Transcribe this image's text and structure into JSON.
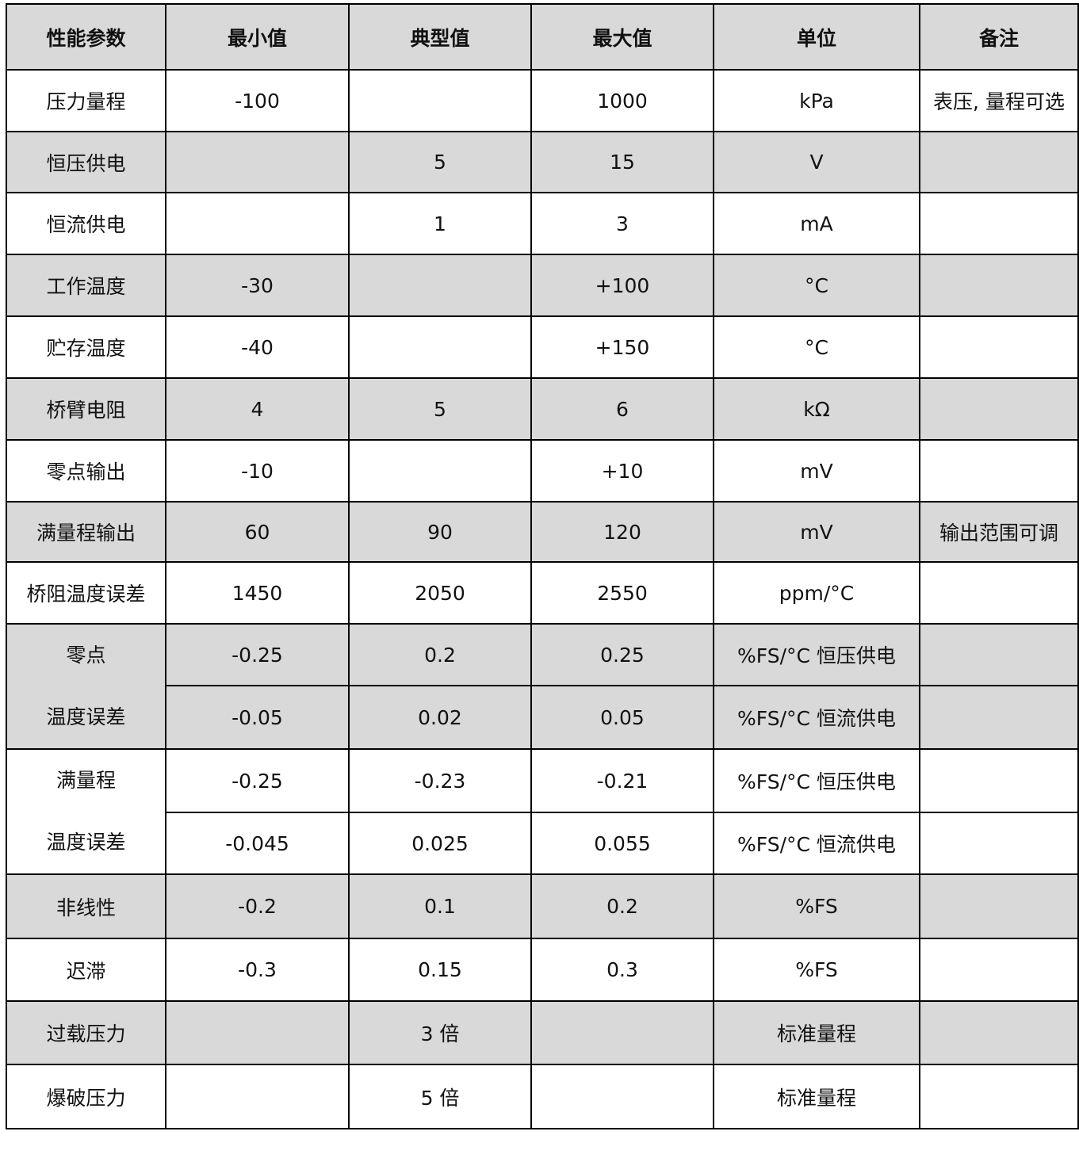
{
  "header": [
    "性能参数",
    "最小值",
    "典型值",
    "最大值",
    "单位",
    "备注"
  ],
  "shade_color": "#d9d9d9",
  "rows": [
    {
      "param": "压力量程",
      "min": "-100",
      "typ": "",
      "max": "1000",
      "unit": "kPa",
      "note": "表压, 量程可选",
      "shaded": false
    },
    {
      "param": "恒压供电",
      "min": "",
      "typ": "5",
      "max": "15",
      "unit": "V",
      "note": "",
      "shaded": true
    },
    {
      "param": "恒流供电",
      "min": "",
      "typ": "1",
      "max": "3",
      "unit": "mA",
      "note": "",
      "shaded": false
    },
    {
      "param": "工作温度",
      "min": "-30",
      "typ": "",
      "max": "+100",
      "unit": "°C",
      "note": "",
      "shaded": true
    },
    {
      "param": "贮存温度",
      "min": "-40",
      "typ": "",
      "max": "+150",
      "unit": "°C",
      "note": "",
      "shaded": false
    },
    {
      "param": "桥臂电阻",
      "min": "4",
      "typ": "5",
      "max": "6",
      "unit": "kΩ",
      "note": "",
      "shaded": true
    },
    {
      "param": "零点输出",
      "min": "-10",
      "typ": "",
      "max": "+10",
      "unit": "mV",
      "note": "",
      "shaded": false
    },
    {
      "param": "满量程输出",
      "min": "60",
      "typ": "90",
      "max": "120",
      "unit": "mV",
      "note": "输出范围可调",
      "shaded": true
    },
    {
      "param": "桥阻温度误差",
      "min": "1450",
      "typ": "2050",
      "max": "2550",
      "unit": "ppm/°C",
      "note": "",
      "shaded": false
    },
    {
      "param": [
        "零点",
        "温度误差"
      ],
      "shaded": true,
      "sub": [
        {
          "min": "-0.25",
          "typ": "0.2",
          "max": "0.25",
          "unit": "%FS/°C  恒压供电",
          "note": ""
        },
        {
          "min": "-0.05",
          "typ": "0.02",
          "max": "0.05",
          "unit": "%FS/°C  恒流供电",
          "note": ""
        }
      ]
    },
    {
      "param": [
        "满量程",
        "温度误差"
      ],
      "shaded": false,
      "sub": [
        {
          "min": "-0.25",
          "typ": "-0.23",
          "max": "-0.21",
          "unit": "%FS/°C  恒压供电",
          "note": ""
        },
        {
          "min": "-0.045",
          "typ": "0.025",
          "max": "0.055",
          "unit": "%FS/°C  恒流供电",
          "note": ""
        }
      ]
    },
    {
      "param": "非线性",
      "min": "-0.2",
      "typ": "0.1",
      "max": "0.2",
      "unit": "%FS",
      "note": "",
      "shaded": true
    },
    {
      "param": "迟滞",
      "min": "-0.3",
      "typ": "0.15",
      "max": "0.3",
      "unit": "%FS",
      "note": "",
      "shaded": false
    },
    {
      "param": "过载压力",
      "min": "",
      "typ": "3 倍",
      "max": "",
      "unit": "标准量程",
      "note": "",
      "shaded": true
    },
    {
      "param": "爆破压力",
      "min": "",
      "typ": "5 倍",
      "max": "",
      "unit": "标准量程",
      "note": "",
      "shaded": false
    }
  ]
}
